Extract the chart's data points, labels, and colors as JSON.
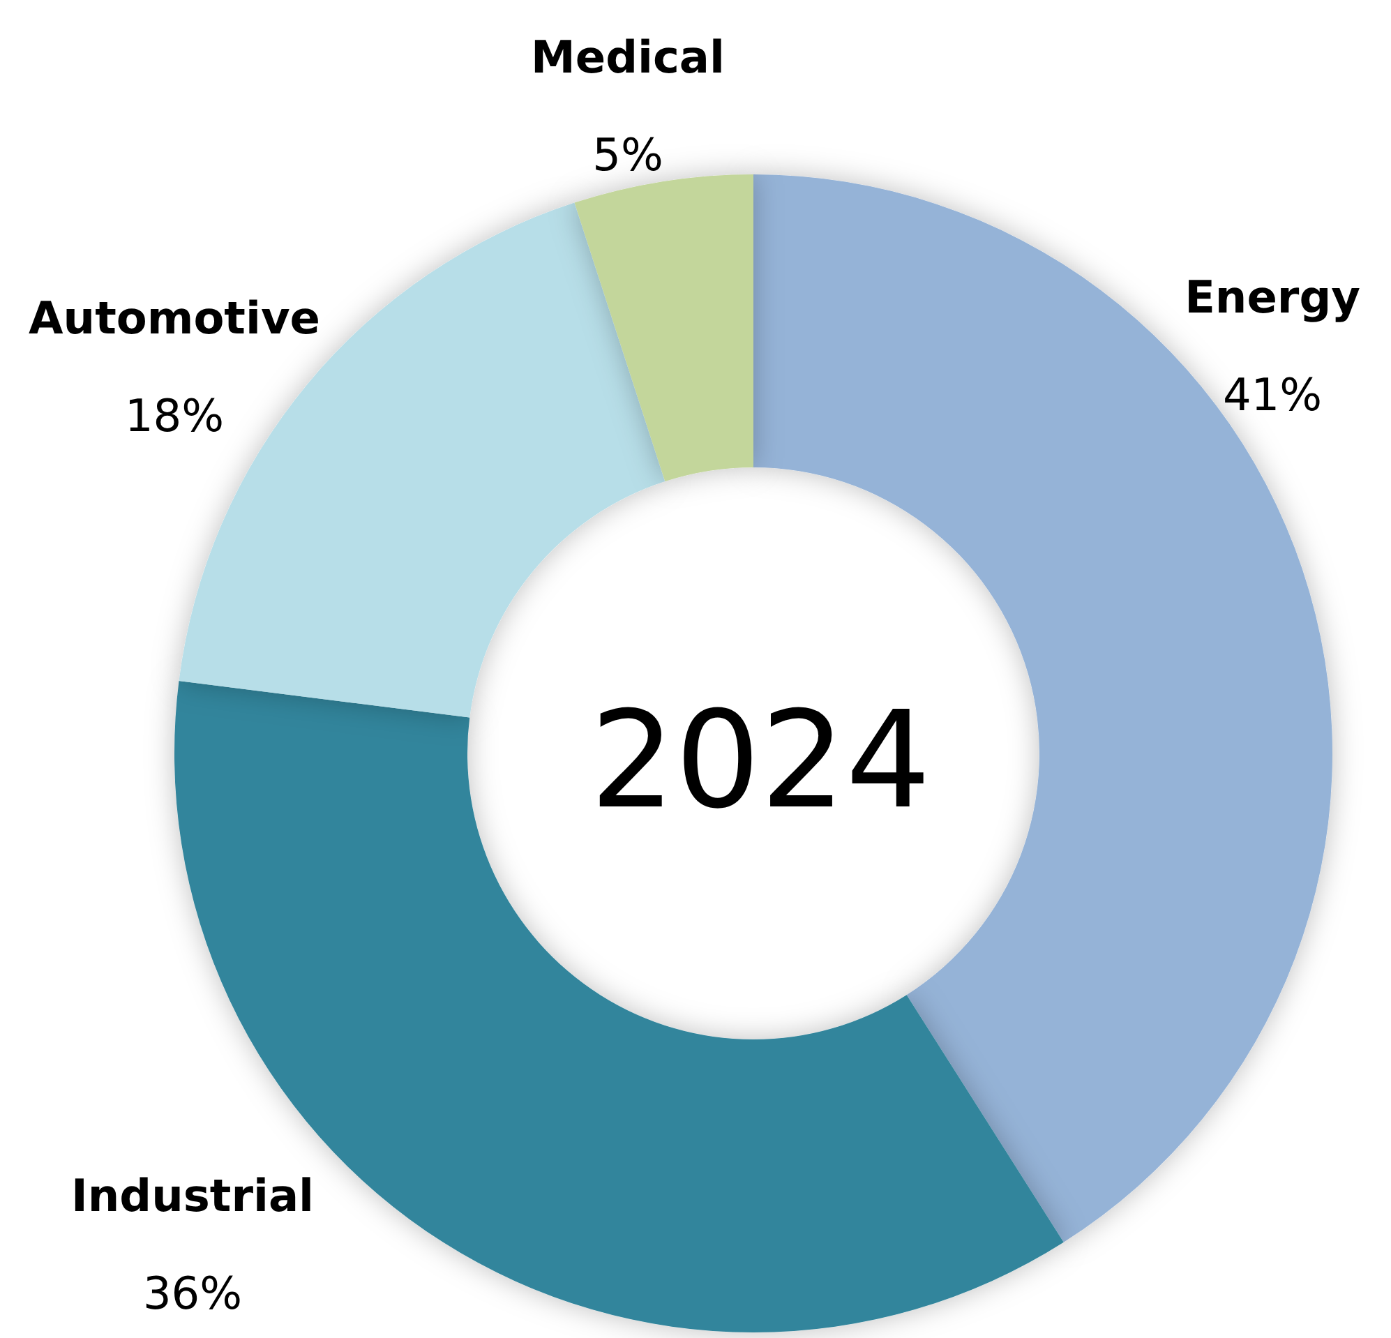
{
  "chart_data": {
    "type": "donut",
    "title": "2024",
    "categories": [
      "Energy",
      "Industrial",
      "Automotive",
      "Medical"
    ],
    "values": [
      41,
      36,
      18,
      5
    ],
    "value_labels": [
      "41%",
      "36%",
      "18%",
      "5%"
    ],
    "colors": [
      "#95b3d7",
      "#31859c",
      "#b7dee8",
      "#c3d69b"
    ],
    "legend": false
  }
}
